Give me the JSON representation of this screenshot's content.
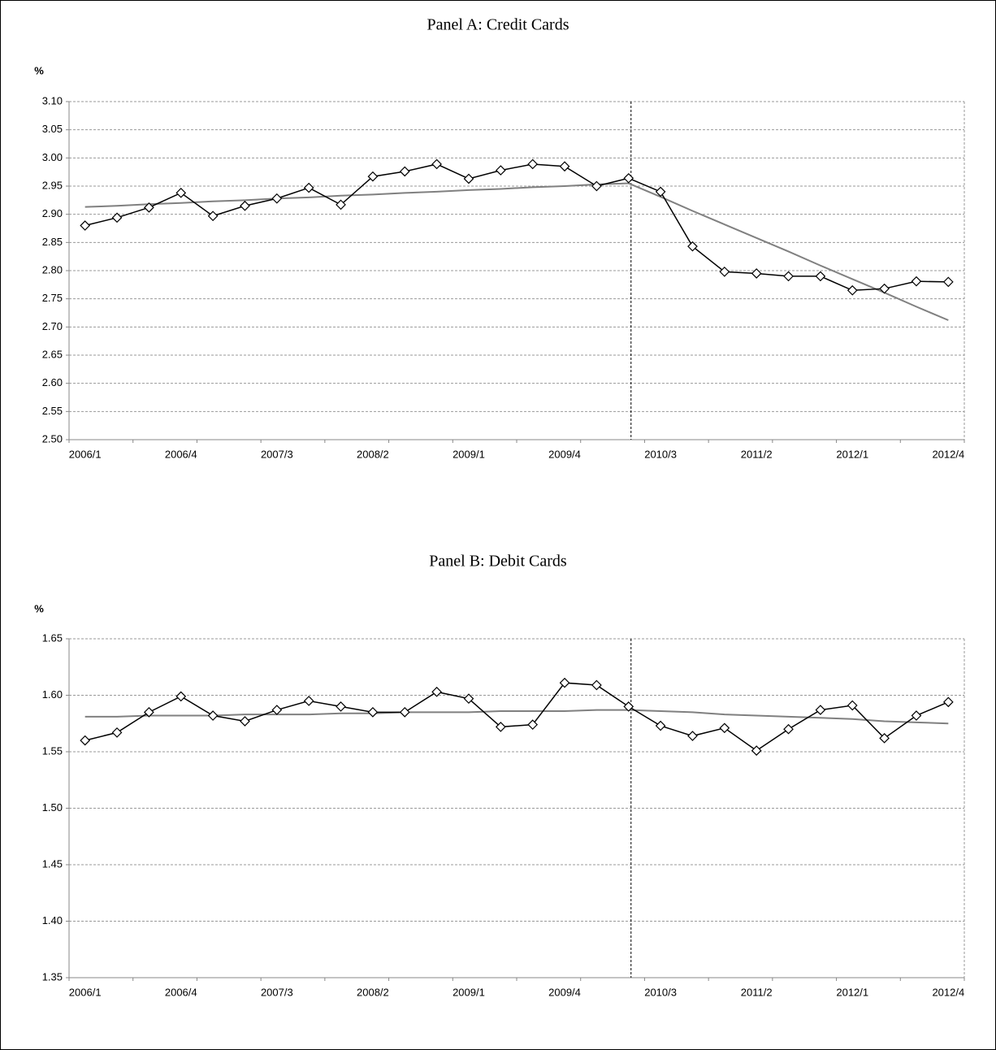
{
  "chart_data": [
    {
      "type": "line",
      "title": "Panel A: Credit Cards",
      "ylabel": "%",
      "categories": [
        "2006/1",
        null,
        null,
        "2006/4",
        null,
        null,
        "2007/3",
        null,
        null,
        "2008/2",
        null,
        null,
        "2009/1",
        null,
        null,
        "2009/4",
        null,
        null,
        "2010/3",
        null,
        null,
        "2011/2",
        null,
        null,
        "2012/1",
        null,
        null,
        "2012/4"
      ],
      "series": [
        {
          "color": "#000000",
          "marker": "diamond",
          "values": [
            2.88,
            2.894,
            2.912,
            2.938,
            2.897,
            2.915,
            2.928,
            2.947,
            2.917,
            2.967,
            2.976,
            2.989,
            2.963,
            2.978,
            2.989,
            2.985,
            2.95,
            2.964,
            2.94,
            2.843,
            2.798,
            2.795,
            2.79,
            2.79,
            2.765,
            2.768,
            2.781,
            2.78
          ]
        },
        {
          "color": "#808080",
          "values": [
            2.913,
            2.915,
            2.918,
            2.92,
            2.923,
            2.925,
            2.928,
            2.93,
            2.933,
            2.935,
            2.938,
            2.94,
            2.943,
            2.945,
            2.948,
            2.95,
            2.953,
            2.955,
            2.931,
            2.906,
            2.882,
            2.858,
            2.834,
            2.809,
            2.785,
            2.761,
            2.736,
            2.712
          ]
        }
      ],
      "ylim": [
        2.5,
        3.1
      ],
      "yticks": [
        {
          "value": 2.5,
          "label": "2.50"
        },
        2.55,
        {
          "value": 2.6,
          "label": "2.60"
        },
        2.65,
        {
          "value": 2.7,
          "label": "2.70"
        },
        2.75,
        {
          "value": 2.8,
          "label": "2.80"
        },
        2.85,
        {
          "value": 2.9,
          "label": "2.90"
        },
        2.95,
        {
          "value": 3.0,
          "label": "3.00"
        },
        3.05,
        {
          "value": 3.1,
          "label": "3.10"
        }
      ],
      "grid": true
    },
    {
      "type": "line",
      "title": "Panel B: Debit Cards",
      "ylabel": "%",
      "categories": [
        "2006/1",
        null,
        null,
        "2006/4",
        null,
        null,
        "2007/3",
        null,
        null,
        "2008/2",
        null,
        null,
        "2009/1",
        null,
        null,
        "2009/4",
        null,
        null,
        "2010/3",
        null,
        null,
        "2011/2",
        null,
        null,
        "2012/1",
        null,
        null,
        "2012/4"
      ],
      "series": [
        {
          "color": "#000000",
          "marker": "diamond",
          "values": [
            1.56,
            1.567,
            1.585,
            1.599,
            1.582,
            1.577,
            1.587,
            1.595,
            1.59,
            1.585,
            1.585,
            1.603,
            1.597,
            1.572,
            1.574,
            1.611,
            1.609,
            1.59,
            1.573,
            1.564,
            1.571,
            1.551,
            1.57,
            1.587,
            1.591,
            1.562,
            1.582,
            1.594
          ]
        },
        {
          "color": "#808080",
          "values": [
            1.581,
            1.581,
            1.582,
            1.582,
            1.582,
            1.583,
            1.583,
            1.583,
            1.584,
            1.584,
            1.585,
            1.585,
            1.585,
            1.586,
            1.586,
            1.586,
            1.587,
            1.587,
            1.586,
            1.585,
            1.583,
            1.582,
            1.581,
            1.58,
            1.579,
            1.577,
            1.576,
            1.575
          ]
        }
      ],
      "ylim": [
        1.35,
        1.65
      ],
      "yticks": [
        1.35,
        {
          "value": 1.4,
          "label": "1.40"
        },
        1.45,
        {
          "value": 1.5,
          "label": "1.50"
        },
        1.55,
        {
          "value": 1.6,
          "label": "1.60"
        },
        1.65
      ],
      "grid": true
    }
  ]
}
